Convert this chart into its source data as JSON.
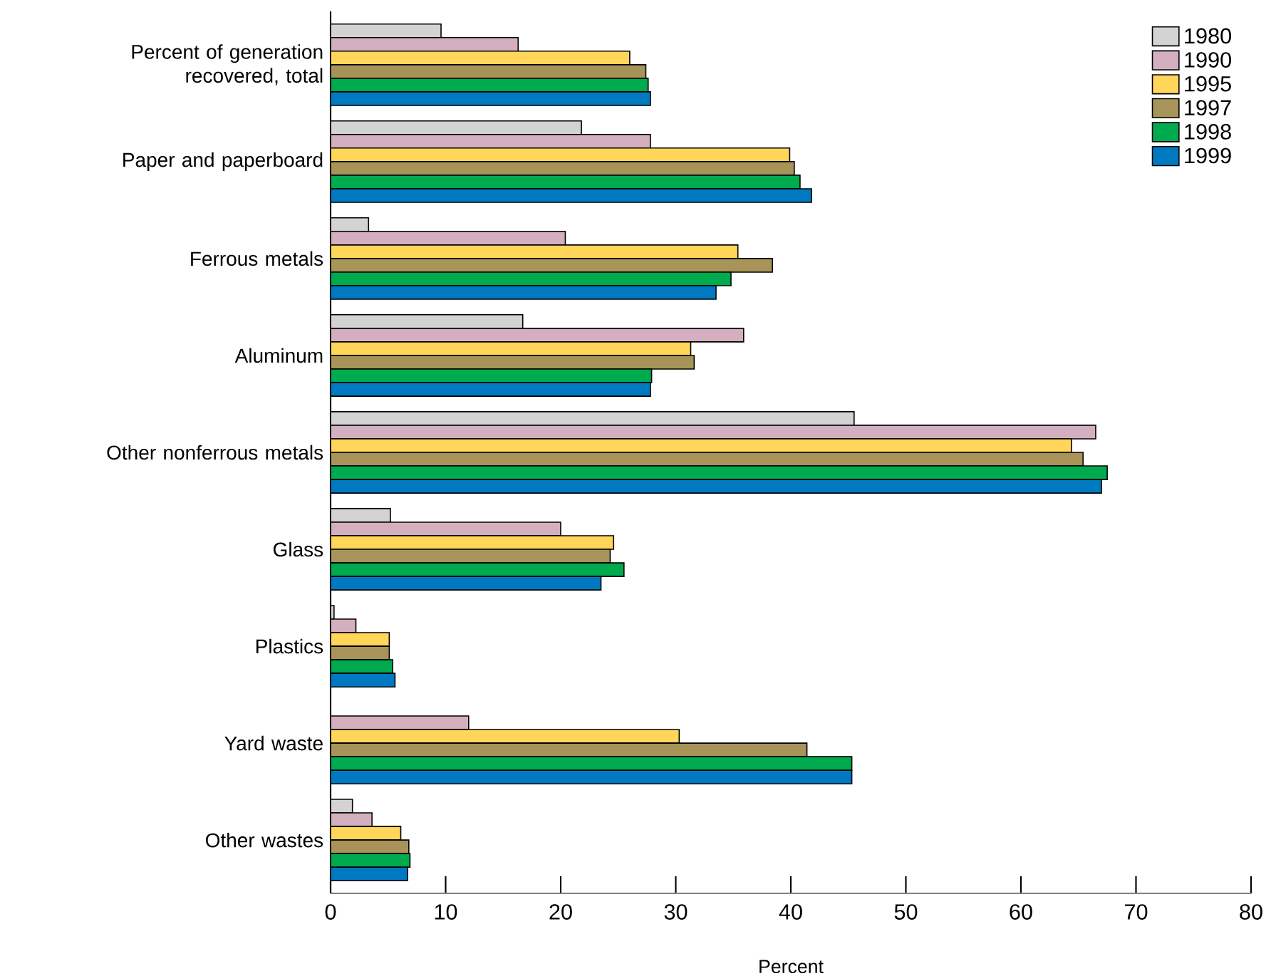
{
  "chart_data": {
    "type": "bar",
    "orientation": "horizontal",
    "xlabel": "Percent",
    "categories": [
      "Percent of generation recovered, total",
      "Paper and paperboard",
      "Ferrous metals",
      "Aluminum",
      "Other nonferrous metals",
      "Glass",
      "Plastics",
      "Yard waste",
      "Other wastes"
    ],
    "series": [
      {
        "name": "1980",
        "color": "#d3d3d3",
        "values": [
          9.6,
          21.8,
          3.3,
          16.7,
          45.5,
          5.2,
          0.3,
          null,
          1.9
        ]
      },
      {
        "name": "1990",
        "color": "#d4afc0",
        "values": [
          16.3,
          27.8,
          20.4,
          35.9,
          66.5,
          20.0,
          2.2,
          12.0,
          3.6
        ]
      },
      {
        "name": "1995",
        "color": "#ffd55a",
        "values": [
          26.0,
          39.9,
          35.4,
          31.3,
          64.4,
          24.6,
          5.1,
          30.3,
          6.1
        ]
      },
      {
        "name": "1997",
        "color": "#a89458",
        "values": [
          27.4,
          40.3,
          38.4,
          31.6,
          65.4,
          24.3,
          5.1,
          41.4,
          6.8
        ]
      },
      {
        "name": "1998",
        "color": "#00aa4f",
        "values": [
          27.6,
          40.8,
          34.8,
          27.9,
          67.5,
          25.5,
          5.4,
          45.3,
          6.9
        ]
      },
      {
        "name": "1999",
        "color": "#0079c1",
        "values": [
          27.8,
          41.8,
          33.5,
          27.8,
          67.0,
          23.5,
          5.6,
          45.3,
          6.7
        ]
      }
    ],
    "xlim": [
      0,
      80
    ],
    "xticks": [
      0,
      10,
      20,
      30,
      40,
      50,
      60,
      70,
      80
    ],
    "legend": "top right"
  }
}
